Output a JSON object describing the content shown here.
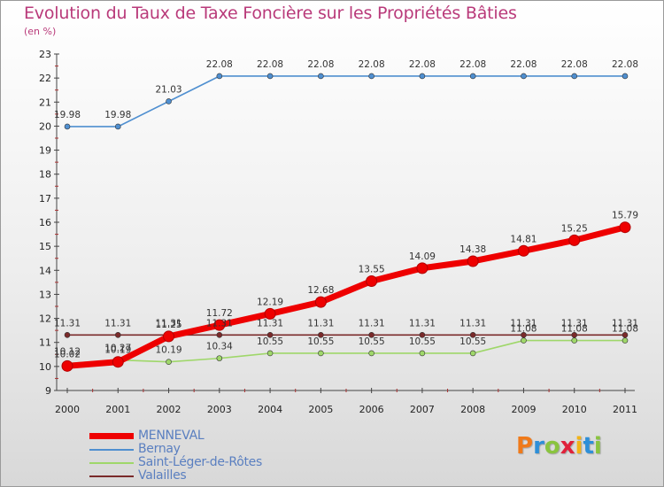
{
  "chart_data": {
    "type": "line",
    "title": "Evolution du Taux de Taxe Foncière sur les Propriétés Bâties",
    "subtitle": "(en %)",
    "x": [
      "2000",
      "2001",
      "2002",
      "2003",
      "2004",
      "2005",
      "2006",
      "2007",
      "2008",
      "2009",
      "2010",
      "2011"
    ],
    "ylim": [
      9,
      23
    ],
    "yticks": [
      "9",
      "10",
      "11",
      "12",
      "13",
      "14",
      "15",
      "16",
      "17",
      "18",
      "19",
      "20",
      "21",
      "22",
      "23"
    ],
    "grid": false,
    "legend_position": "bottom-left",
    "series": [
      {
        "name": "MENNEVAL",
        "color": "#ee0000",
        "values": [
          10.02,
          10.19,
          11.25,
          11.72,
          12.19,
          12.68,
          13.55,
          14.09,
          14.38,
          14.81,
          15.25,
          15.79
        ],
        "labels": [
          "10.02",
          "10.19",
          "11.25",
          "11.72",
          "12.19",
          "12.68",
          "13.55",
          "14.09",
          "14.38",
          "14.81",
          "15.25",
          "15.79"
        ]
      },
      {
        "name": "Bernay",
        "color": "#4f8fd0",
        "values": [
          19.98,
          19.98,
          21.03,
          22.08,
          22.08,
          22.08,
          22.08,
          22.08,
          22.08,
          22.08,
          22.08,
          22.08
        ],
        "labels": [
          "19.98",
          "19.98",
          "21.03",
          "22.08",
          "22.08",
          "22.08",
          "22.08",
          "22.08",
          "22.08",
          "22.08",
          "22.08",
          "22.08"
        ]
      },
      {
        "name": "Saint-Léger-de-Rôtes",
        "color": "#9fd76a",
        "values": [
          10.12,
          10.27,
          10.19,
          10.34,
          10.55,
          10.55,
          10.55,
          10.55,
          10.55,
          11.08,
          11.08,
          11.08
        ],
        "labels": [
          "10.12",
          "10.27",
          "10.19",
          "10.34",
          "10.55",
          "10.55",
          "10.55",
          "10.55",
          "10.55",
          "11.08",
          "11.08",
          "11.08"
        ]
      },
      {
        "name": "Valailles",
        "color": "#7a2a2a",
        "values": [
          11.31,
          11.31,
          11.31,
          11.31,
          11.31,
          11.31,
          11.31,
          11.31,
          11.31,
          11.31,
          11.31,
          11.31
        ],
        "labels": [
          "11.31",
          "11.31",
          "11.31",
          "11.31",
          "11.31",
          "11.31",
          "11.31",
          "11.31",
          "11.31",
          "11.31",
          "11.31",
          "11.31"
        ]
      }
    ]
  },
  "logo": {
    "text": "Proxiti"
  }
}
